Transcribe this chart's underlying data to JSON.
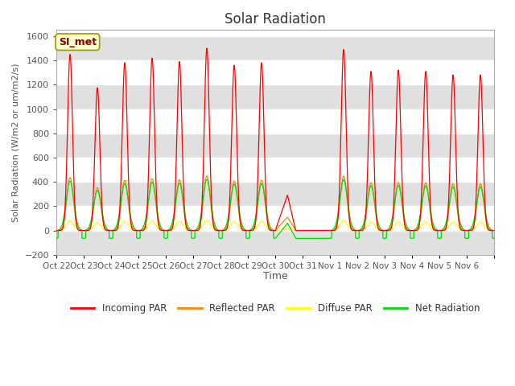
{
  "title": "Solar Radiation",
  "ylabel": "Solar Radiation (W/m2 or um/m2/s)",
  "xlabel": "Time",
  "ylim": [
    -200,
    1650
  ],
  "yticks": [
    -200,
    0,
    200,
    400,
    600,
    800,
    1000,
    1200,
    1400,
    1600
  ],
  "x_labels": [
    "Oct 22",
    "Oct 23",
    "Oct 24",
    "Oct 25",
    "Oct 26",
    "Oct 27",
    "Oct 28",
    "Oct 29",
    "Oct 30",
    "Oct 31",
    "Nov 1",
    "Nov 2",
    "Nov 3",
    "Nov 4",
    "Nov 5",
    "Nov 6"
  ],
  "colors": {
    "incoming": "#ff0000",
    "reflected": "#ff8800",
    "diffuse": "#ffff00",
    "net": "#00dd00"
  },
  "legend_label_incoming": "Incoming PAR",
  "legend_label_reflected": "Reflected PAR",
  "legend_label_diffuse": "Diffuse PAR",
  "legend_label_net": "Net Radiation",
  "station_label": "SI_met",
  "fig_facecolor": "#ffffff",
  "plot_bg_color": "#ffffff",
  "grid_band_color": "#e0e0e0"
}
